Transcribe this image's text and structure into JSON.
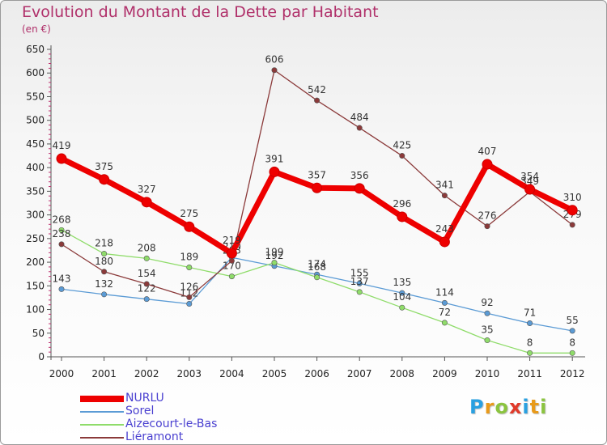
{
  "header": {
    "title": "Evolution du Montant de la Dette par Habitant",
    "subtitle": "(en €)"
  },
  "chart_data": {
    "type": "line",
    "title": "Evolution du Montant de la Dette par Habitant",
    "subtitle": "(en €)",
    "categories": [
      "2000",
      "2001",
      "2002",
      "2003",
      "2004",
      "2005",
      "2006",
      "2007",
      "2008",
      "2009",
      "2010",
      "2011",
      "2012"
    ],
    "ylim": [
      0,
      650
    ],
    "yticks": [
      0,
      50,
      100,
      150,
      200,
      250,
      300,
      350,
      400,
      450,
      500,
      550,
      600,
      650
    ],
    "grid": false,
    "legend_position": "bottom-left",
    "series": [
      {
        "name": "NURLU",
        "color": "#ee0000",
        "values": [
          419,
          375,
          327,
          275,
          219,
          391,
          357,
          356,
          296,
          243,
          407,
          354,
          310
        ]
      },
      {
        "name": "Sorel",
        "color": "#5b9bd5",
        "values": [
          143,
          132,
          122,
          112,
          210,
          192,
          174,
          155,
          135,
          114,
          92,
          71,
          55
        ]
      },
      {
        "name": "Aizecourt-le-Bas",
        "color": "#8fdc6a",
        "values": [
          268,
          218,
          208,
          189,
          170,
          199,
          168,
          137,
          104,
          72,
          35,
          8,
          8
        ]
      },
      {
        "name": "Liéramont",
        "color": "#8b3a3a",
        "values": [
          238,
          180,
          154,
          126,
          203,
          606,
          542,
          484,
          425,
          341,
          276,
          349,
          279
        ]
      }
    ]
  },
  "logo": {
    "letters": [
      "P",
      "r",
      "o",
      "x",
      "i",
      "t",
      "i"
    ],
    "colors": [
      "#2aa0e0",
      "#e89a1a",
      "#8bc43f",
      "#e03a2a",
      "#2aa0e0",
      "#e89a1a",
      "#8bc43f"
    ]
  }
}
